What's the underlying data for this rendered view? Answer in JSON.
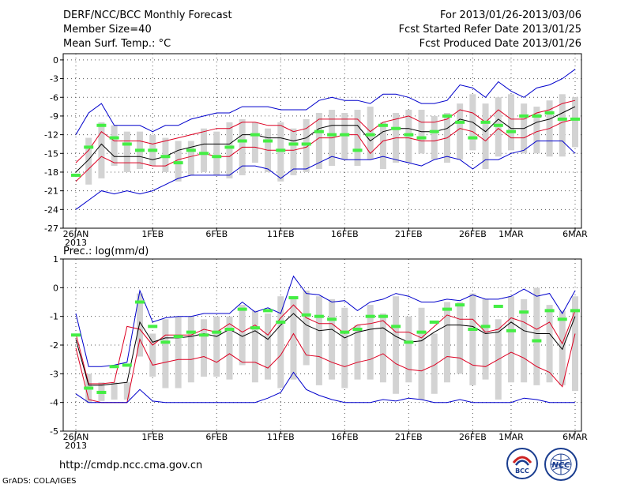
{
  "header": {
    "title": "DERF/NCC/BCC Monthly Forecast",
    "member_size": "Member Size=40",
    "variable": "Mean Surf. Temp.: °C",
    "period": "For 2013/01/26-2013/03/06",
    "fcst_start": "Fcst Started Refer Date 2013/01/25",
    "fcst_produced": "Fcst Produced Date 2013/01/26"
  },
  "footer": {
    "url": "http://cmdp.ncc.cma.gov.cn",
    "credit": "GrADS: COLA/IGES",
    "logo_bcc": "BCC",
    "logo_ncc": "NCC"
  },
  "colors": {
    "envelope": "#0000cc",
    "percentile": "#dd0022",
    "mean": "#000000",
    "box": "#d3d3d3",
    "observed": "#44ee44",
    "grid": "#555555"
  },
  "chart_data": [
    {
      "type": "line",
      "title": "Mean Surf. Temp.: °C",
      "ylim": [
        -27,
        1
      ],
      "yticks": [
        0,
        -3,
        -6,
        -9,
        -12,
        -15,
        -18,
        -21,
        -24,
        -27
      ],
      "ytick_labels": [
        "0",
        "-3",
        "-6",
        "-9",
        "-12",
        "-15",
        "-18",
        "-21",
        "-24",
        "-27"
      ],
      "xlim": [
        0,
        39
      ],
      "xtick_days": [
        0,
        6,
        11,
        16,
        21,
        26,
        31,
        34,
        39
      ],
      "xtick_labels": [
        "26JAN",
        "1FEB",
        "6FEB",
        "11FEB",
        "16FEB",
        "21FEB",
        "26FEB",
        "1MAR",
        "6MAR"
      ],
      "xyear": "2013",
      "grid": true,
      "days": [
        0,
        1,
        2,
        3,
        4,
        5,
        6,
        7,
        8,
        9,
        10,
        11,
        12,
        13,
        14,
        15,
        16,
        17,
        18,
        19,
        20,
        21,
        22,
        23,
        24,
        25,
        26,
        27,
        28,
        29,
        30,
        31,
        32,
        33,
        34,
        35,
        36,
        37,
        38,
        39
      ],
      "series": [
        {
          "name": "max",
          "values": [
            -12,
            -8.5,
            -7,
            -10.5,
            -10.5,
            -10.5,
            -11.5,
            -10.5,
            -10.5,
            -9.5,
            -9,
            -8.5,
            -8.5,
            -7.5,
            -7.5,
            -7.5,
            -8,
            -8,
            -8,
            -6.5,
            -6,
            -6.5,
            -6.5,
            -7,
            -5.5,
            -5.5,
            -6,
            -7,
            -7,
            -6.5,
            -4,
            -4.5,
            -6,
            -3.5,
            -5,
            -6,
            -4.5,
            -4,
            -3,
            -1.5
          ]
        },
        {
          "name": "p90",
          "values": [
            -16.5,
            -14.5,
            -11.5,
            -13,
            -13,
            -13,
            -13.5,
            -13,
            -12.5,
            -12,
            -11.5,
            -11,
            -11,
            -10,
            -10,
            -10.5,
            -10.5,
            -11.5,
            -11,
            -9.5,
            -9.5,
            -9.5,
            -9.5,
            -11.5,
            -10,
            -9.5,
            -9,
            -10,
            -10,
            -9.5,
            -8,
            -8.5,
            -10,
            -8,
            -9.5,
            -9.5,
            -8.5,
            -8,
            -7,
            -6.5
          ]
        },
        {
          "name": "mean",
          "values": [
            -18,
            -16,
            -13.5,
            -15.5,
            -15.5,
            -15.5,
            -16,
            -15.5,
            -14.5,
            -14,
            -13.5,
            -13.5,
            -13.5,
            -12,
            -12,
            -12.5,
            -12.5,
            -13,
            -12.5,
            -11,
            -10.5,
            -10.5,
            -10.5,
            -13,
            -11.5,
            -11,
            -11,
            -11.5,
            -11.5,
            -11,
            -9.5,
            -10,
            -11.5,
            -9.5,
            -11,
            -11,
            -10,
            -9.5,
            -8.5,
            -7.5
          ]
        },
        {
          "name": "p10",
          "values": [
            -19.5,
            -17.5,
            -15.5,
            -16.5,
            -16.5,
            -16.5,
            -17,
            -17,
            -16,
            -15.5,
            -15,
            -15.5,
            -15.5,
            -14,
            -14,
            -14.5,
            -14.5,
            -14.5,
            -14,
            -12.5,
            -12.5,
            -12,
            -12,
            -15,
            -13,
            -12.5,
            -12.5,
            -13,
            -13,
            -12.5,
            -11,
            -11.5,
            -13,
            -11,
            -12.5,
            -12.5,
            -11.5,
            -11,
            -10,
            -9.5
          ]
        },
        {
          "name": "min",
          "values": [
            -24,
            -22.5,
            -21,
            -21.5,
            -21,
            -21.5,
            -21,
            -20,
            -19,
            -18.5,
            -18.5,
            -18.5,
            -18.5,
            -17,
            -17,
            -17.5,
            -19,
            -17.5,
            -17.5,
            -16.5,
            -15.5,
            -16,
            -16,
            -16,
            -15.5,
            -16,
            -16.5,
            -17,
            -16,
            -15.5,
            -16,
            -17.5,
            -16,
            -16,
            -15,
            -14.5,
            -13,
            -13,
            -13,
            -15
          ]
        }
      ],
      "boxes_days": [
        1,
        2,
        3,
        4,
        5,
        6,
        7,
        8,
        9,
        10,
        11,
        12,
        13,
        14,
        15,
        16,
        17,
        18,
        19,
        20,
        21,
        22,
        23,
        24,
        25,
        26,
        27,
        28,
        29,
        30,
        31,
        32,
        33,
        34,
        35,
        36,
        37,
        38,
        39
      ],
      "boxes": [
        [
          -20,
          -12.5
        ],
        [
          -19,
          -10
        ],
        [
          -17,
          -10.5
        ],
        [
          -18,
          -11.5
        ],
        [
          -17.5,
          -11.5
        ],
        [
          -17,
          -12
        ],
        [
          -18,
          -12.5
        ],
        [
          -19.5,
          -13
        ],
        [
          -18.5,
          -13
        ],
        [
          -18,
          -11
        ],
        [
          -18.5,
          -11.5
        ],
        [
          -19,
          -10
        ],
        [
          -18.5,
          -9.5
        ],
        [
          -16.5,
          -10
        ],
        [
          -18,
          -11
        ],
        [
          -19.5,
          -10
        ],
        [
          -18.5,
          -11
        ],
        [
          -18,
          -9.5
        ],
        [
          -17.5,
          -8.5
        ],
        [
          -17,
          -8
        ],
        [
          -16,
          -8.5
        ],
        [
          -17,
          -8
        ],
        [
          -16,
          -7.5
        ],
        [
          -17.5,
          -10
        ],
        [
          -16.5,
          -8.5
        ],
        [
          -16.5,
          -8
        ],
        [
          -15,
          -8
        ],
        [
          -16,
          -9
        ],
        [
          -16.5,
          -8.5
        ],
        [
          -16,
          -7
        ],
        [
          -14.5,
          -5.5
        ],
        [
          -17.5,
          -7
        ],
        [
          -15.5,
          -6
        ],
        [
          -14.5,
          -5.5
        ],
        [
          -15,
          -7
        ],
        [
          -15,
          -7.5
        ],
        [
          -15.5,
          -6.5
        ],
        [
          -15.5,
          -5.5
        ],
        [
          -14,
          -6
        ]
      ],
      "observed_days": [
        0,
        1,
        2,
        3,
        4,
        5,
        6,
        7,
        8,
        9,
        10,
        11,
        12,
        13,
        14,
        15,
        16,
        17,
        18,
        19,
        20,
        21,
        22,
        23,
        24,
        25,
        26,
        27,
        28,
        29,
        30,
        31,
        32,
        33,
        34,
        35,
        36,
        37,
        38,
        39
      ],
      "observed": [
        -18.5,
        -14,
        -10.5,
        -12.5,
        -13.5,
        -14.5,
        -14.5,
        -15.5,
        -16.5,
        -14.5,
        -15,
        -15.5,
        -14,
        -13,
        -12,
        -13,
        -14.5,
        -13.5,
        -13.5,
        -11.5,
        -12,
        -12,
        -14.5,
        -12,
        -10.5,
        -11,
        -12,
        -12.5,
        -11.5,
        -9,
        -10,
        -12.5,
        -10,
        -10.5,
        -11.5,
        -9,
        -9,
        -8.5,
        -9.5,
        -9.5
      ]
    },
    {
      "type": "line",
      "title": "Prec.: log(mm/d)",
      "ylim": [
        -5,
        1
      ],
      "yticks": [
        1,
        0,
        -1,
        -2,
        -3,
        -4,
        -5
      ],
      "ytick_labels": [
        "1",
        "0",
        "-1",
        "-2",
        "-3",
        "-4",
        "-5"
      ],
      "xlim": [
        0,
        39
      ],
      "xtick_days": [
        0,
        6,
        11,
        16,
        21,
        26,
        31,
        34,
        39
      ],
      "xtick_labels": [
        "26JAN",
        "1FEB",
        "6FEB",
        "11FEB",
        "16FEB",
        "21FEB",
        "26FEB",
        "1MAR",
        "6MAR"
      ],
      "xyear": "2013",
      "grid": true,
      "days": [
        0,
        1,
        2,
        3,
        4,
        5,
        6,
        7,
        8,
        9,
        10,
        11,
        12,
        13,
        14,
        15,
        16,
        17,
        18,
        19,
        20,
        21,
        22,
        23,
        24,
        25,
        26,
        27,
        28,
        29,
        30,
        31,
        32,
        33,
        34,
        35,
        36,
        37,
        38,
        39
      ],
      "series": [
        {
          "name": "max",
          "values": [
            -0.9,
            -2.75,
            -2.75,
            -2.7,
            -2.6,
            -0.1,
            -1.2,
            -1.05,
            -1.0,
            -1.0,
            -0.9,
            -0.9,
            -0.9,
            -0.5,
            -0.85,
            -0.7,
            -0.9,
            0.4,
            -0.2,
            -0.25,
            -0.5,
            -0.45,
            -0.8,
            -0.5,
            -0.4,
            -0.2,
            -0.3,
            -0.5,
            -0.5,
            -0.4,
            -0.45,
            -0.25,
            -0.4,
            -0.4,
            -0.3,
            -0.05,
            -0.3,
            -0.2,
            -0.9,
            -0.1
          ]
        },
        {
          "name": "p90",
          "values": [
            -1.6,
            -3.35,
            -3.35,
            -3.3,
            -1.35,
            -1.45,
            -2.0,
            -1.65,
            -1.65,
            -1.65,
            -1.45,
            -1.55,
            -1.25,
            -1.55,
            -1.3,
            -1.65,
            -1.05,
            -0.6,
            -1.05,
            -1.25,
            -1.25,
            -1.6,
            -1.3,
            -1.25,
            -1.15,
            -1.55,
            -1.55,
            -1.75,
            -1.35,
            -0.95,
            -1.1,
            -1.1,
            -1.55,
            -1.45,
            -1.05,
            -1.2,
            -1.45,
            -1.2,
            -1.95,
            -0.8
          ]
        },
        {
          "name": "mean",
          "values": [
            -1.8,
            -3.4,
            -3.4,
            -3.35,
            -3.3,
            -1.2,
            -1.9,
            -1.75,
            -1.75,
            -1.7,
            -1.6,
            -1.7,
            -1.45,
            -1.7,
            -1.5,
            -1.8,
            -1.3,
            -0.9,
            -1.3,
            -1.5,
            -1.45,
            -1.75,
            -1.55,
            -1.45,
            -1.4,
            -1.7,
            -1.9,
            -1.85,
            -1.55,
            -1.3,
            -1.3,
            -1.35,
            -1.6,
            -1.55,
            -1.2,
            -1.5,
            -1.6,
            -1.6,
            -2.15,
            -1.0
          ]
        },
        {
          "name": "p10",
          "values": [
            -2.1,
            -3.9,
            -4.0,
            -4.0,
            -4.0,
            -1.8,
            -2.7,
            -2.6,
            -2.5,
            -2.5,
            -2.4,
            -2.6,
            -2.3,
            -2.6,
            -2.6,
            -2.8,
            -2.35,
            -1.6,
            -2.35,
            -2.4,
            -2.6,
            -2.75,
            -2.6,
            -2.5,
            -2.3,
            -2.65,
            -2.85,
            -2.9,
            -2.7,
            -2.4,
            -2.45,
            -2.7,
            -2.75,
            -2.5,
            -2.25,
            -2.45,
            -2.75,
            -2.95,
            -3.45,
            -1.6
          ]
        },
        {
          "name": "min",
          "values": [
            -3.7,
            -4.0,
            -4.0,
            -4.0,
            -4.0,
            -3.55,
            -3.95,
            -4.0,
            -4.0,
            -4.0,
            -4.0,
            -4.0,
            -4.0,
            -4.0,
            -4.0,
            -3.85,
            -3.65,
            -2.95,
            -3.55,
            -3.75,
            -3.9,
            -4.0,
            -4.0,
            -4.0,
            -3.9,
            -3.95,
            -3.85,
            -3.9,
            -4.0,
            -4.0,
            -3.9,
            -4.0,
            -4.0,
            -4.0,
            -4.0,
            -3.85,
            -3.9,
            -4.0,
            -4.0,
            -4.0
          ]
        }
      ],
      "boxes_days": [
        1,
        2,
        3,
        4,
        5,
        6,
        7,
        8,
        9,
        10,
        11,
        12,
        13,
        14,
        15,
        16,
        17,
        18,
        19,
        20,
        21,
        22,
        23,
        24,
        25,
        26,
        27,
        28,
        29,
        30,
        31,
        32,
        33,
        34,
        35,
        36,
        37,
        38,
        39
      ],
      "boxes": [
        [
          -4.0,
          -3.0
        ],
        [
          -3.95,
          -3.3
        ],
        [
          -3.9,
          -3.3
        ],
        [
          -3.9,
          -3.3
        ],
        [
          -2.4,
          -0.2
        ],
        [
          -3.1,
          -1.6
        ],
        [
          -3.5,
          -1.1
        ],
        [
          -3.5,
          -1.0
        ],
        [
          -3.3,
          -1.0
        ],
        [
          -3.1,
          -1.1
        ],
        [
          -3.1,
          -1.0
        ],
        [
          -3.2,
          -1.0
        ],
        [
          -2.7,
          -0.6
        ],
        [
          -3.3,
          -0.8
        ],
        [
          -3.2,
          -0.9
        ],
        [
          -3.5,
          -0.3
        ],
        [
          -3.2,
          -0.4
        ],
        [
          -2.7,
          -0.1
        ],
        [
          -3.4,
          -0.3
        ],
        [
          -3.2,
          -0.4
        ],
        [
          -3.5,
          -0.7
        ],
        [
          -3.2,
          -1.3
        ],
        [
          -3.2,
          -0.6
        ],
        [
          -3.3,
          -0.9
        ],
        [
          -3.7,
          -0.3
        ],
        [
          -3.3,
          -1.0
        ],
        [
          -3.9,
          -0.7
        ],
        [
          -3.7,
          -1.6
        ],
        [
          -3.3,
          -0.5
        ],
        [
          -3.0,
          -0.5
        ],
        [
          -3.4,
          -0.2
        ],
        [
          -3.2,
          -0.4
        ],
        [
          -3.9,
          -1.1
        ],
        [
          -3.3,
          -0.3
        ],
        [
          -3.3,
          -0.4
        ],
        [
          -3.4,
          0.0
        ],
        [
          -3.3,
          -0.6
        ],
        [
          -3.4,
          -0.8
        ],
        [
          -3.6,
          -0.3
        ]
      ],
      "observed_days": [
        0,
        1,
        2,
        3,
        4,
        5,
        6,
        7,
        8,
        9,
        10,
        11,
        12,
        13,
        14,
        15,
        16,
        17,
        18,
        19,
        20,
        21,
        22,
        23,
        24,
        25,
        26,
        27,
        28,
        29,
        30,
        31,
        32,
        33,
        34,
        35,
        36,
        37,
        38,
        39
      ],
      "observed": [
        -1.65,
        -3.5,
        -3.65,
        -2.75,
        -2.7,
        -0.5,
        -1.35,
        -1.9,
        -1.7,
        -1.55,
        -1.65,
        -1.55,
        -1.45,
        -0.75,
        -1.4,
        -0.8,
        -1.2,
        -0.35,
        -0.95,
        -1.0,
        -1.1,
        -1.55,
        -1.45,
        -1.0,
        -1.0,
        -1.35,
        -1.9,
        -1.55,
        -1.2,
        -0.75,
        -0.6,
        -1.45,
        -1.35,
        -0.65,
        -1.5,
        -0.85,
        -1.85,
        -0.8,
        -1.1,
        -0.8
      ]
    }
  ]
}
